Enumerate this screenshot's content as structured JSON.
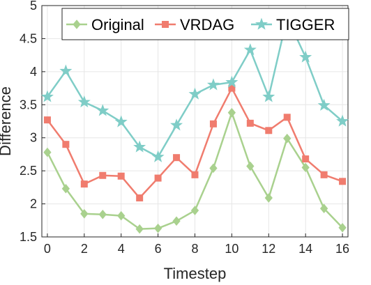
{
  "chart_data": {
    "type": "line",
    "title": "",
    "xlabel": "Timestep",
    "ylabel": "Difference",
    "xlim": [
      -0.3,
      16.3
    ],
    "ylim": [
      1.5,
      5
    ],
    "xticks": [
      0,
      2,
      4,
      6,
      8,
      10,
      12,
      14,
      16
    ],
    "yticks": [
      1.5,
      2,
      2.5,
      3,
      3.5,
      4,
      4.5,
      5
    ],
    "grid": true,
    "legend_position": "top-center",
    "x": [
      0,
      1,
      2,
      3,
      4,
      5,
      6,
      7,
      8,
      9,
      10,
      11,
      12,
      13,
      14,
      15,
      16
    ],
    "series": [
      {
        "name": "Original",
        "color": "#a9d18e",
        "marker": "diamond",
        "values": [
          2.78,
          2.23,
          1.85,
          1.84,
          1.82,
          1.62,
          1.63,
          1.74,
          1.9,
          2.54,
          3.38,
          2.57,
          2.09,
          2.99,
          2.55,
          1.93,
          1.64
        ]
      },
      {
        "name": "VRDAG",
        "color": "#f07c6e",
        "marker": "square",
        "values": [
          3.27,
          2.9,
          2.3,
          2.43,
          2.42,
          2.09,
          2.39,
          2.7,
          2.44,
          3.21,
          3.75,
          3.22,
          3.11,
          3.31,
          2.68,
          2.44,
          2.34
        ]
      },
      {
        "name": "TIGGER",
        "color": "#7fcdc7",
        "marker": "star",
        "values": [
          3.62,
          4.01,
          3.54,
          3.41,
          3.24,
          2.86,
          2.71,
          3.19,
          3.66,
          3.8,
          3.84,
          4.33,
          3.62,
          4.82,
          4.22,
          3.49,
          3.25
        ]
      }
    ]
  }
}
